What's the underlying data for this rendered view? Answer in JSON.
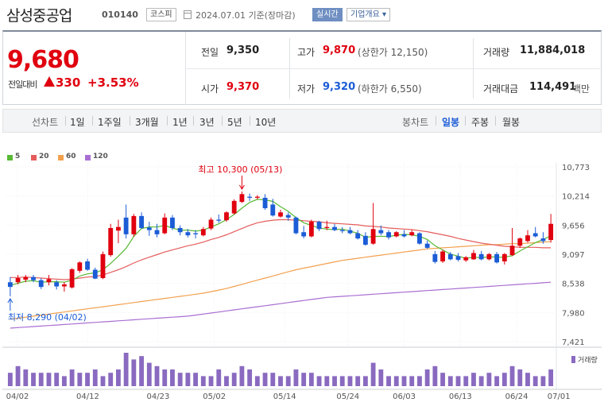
{
  "header": {
    "company": "삼성중공업",
    "code": "010140",
    "market_badge": "코스피",
    "date_text": "2024.07.01 기준(장마감)",
    "realtime_label": "실시간",
    "corp_info_label": "기업개요 ▾"
  },
  "quote": {
    "price": "9,680",
    "prev_label": "전일대비",
    "change": "330",
    "change_pct": "+3.53%"
  },
  "stats": {
    "prev_close": {
      "label": "전일",
      "value": "9,350"
    },
    "open": {
      "label": "시가",
      "value": "9,370"
    },
    "high": {
      "label": "고가",
      "value": "9,870",
      "limit": "(상한가 12,150)"
    },
    "low": {
      "label": "저가",
      "value": "9,320",
      "limit": "(하한가 6,550)"
    },
    "volume": {
      "label": "거래량",
      "value": "11,884,018"
    },
    "amount": {
      "label": "거래대금",
      "value": "114,491",
      "unit": "백만"
    }
  },
  "period_bar": {
    "line_label": "선차트",
    "line_periods": [
      "1일",
      "1주일",
      "3개월",
      "1년",
      "3년",
      "5년",
      "10년"
    ],
    "candle_label": "봉차트",
    "candle_periods": [
      "일봉",
      "주봉",
      "월봉"
    ],
    "active_candle": "일봉"
  },
  "colors": {
    "up": "#e0000f",
    "down": "#1b5cd6",
    "ma5": "#58b935",
    "ma20": "#e55c5c",
    "ma60": "#f2a04e",
    "ma120": "#a96ed2",
    "volume": "#8a6ac0"
  },
  "chart_data": {
    "type": "candlestick",
    "legend": [
      {
        "name": "5",
        "color": "#58b935"
      },
      {
        "name": "20",
        "color": "#e55c5c"
      },
      {
        "name": "60",
        "color": "#f2a04e"
      },
      {
        "name": "120",
        "color": "#a96ed2"
      }
    ],
    "y_ticks": [
      "10,773",
      "10,214",
      "9,656",
      "9,097",
      "8,538",
      "7,980",
      "7,421"
    ],
    "ylim": [
      7421,
      10773
    ],
    "x_ticks": [
      "04/02",
      "04/12",
      "04/23",
      "05/02",
      "05/14",
      "05/24",
      "06/03",
      "06/13",
      "06/24",
      "07/01"
    ],
    "annotations": {
      "high": "최고 10,300 (05/13)",
      "low": "최저 8,290 (04/02)"
    },
    "volume_label": "거래량",
    "candles": [
      {
        "o": 8560,
        "h": 8660,
        "l": 8290,
        "c": 8470
      },
      {
        "o": 8560,
        "h": 8700,
        "l": 8520,
        "c": 8640
      },
      {
        "o": 8610,
        "h": 8700,
        "l": 8560,
        "c": 8660
      },
      {
        "o": 8660,
        "h": 8700,
        "l": 8560,
        "c": 8600
      },
      {
        "o": 8600,
        "h": 8640,
        "l": 8430,
        "c": 8470
      },
      {
        "o": 8560,
        "h": 8700,
        "l": 8500,
        "c": 8620
      },
      {
        "o": 8560,
        "h": 8600,
        "l": 8420,
        "c": 8480
      },
      {
        "o": 8480,
        "h": 8560,
        "l": 8380,
        "c": 8520
      },
      {
        "o": 8460,
        "h": 8830,
        "l": 8440,
        "c": 8810
      },
      {
        "o": 8780,
        "h": 8960,
        "l": 8740,
        "c": 8940
      },
      {
        "o": 8960,
        "h": 9010,
        "l": 8780,
        "c": 8800
      },
      {
        "o": 8800,
        "h": 8840,
        "l": 8620,
        "c": 8630
      },
      {
        "o": 8640,
        "h": 9150,
        "l": 8620,
        "c": 9100
      },
      {
        "o": 9080,
        "h": 9680,
        "l": 9050,
        "c": 9600
      },
      {
        "o": 9550,
        "h": 9760,
        "l": 9310,
        "c": 9620
      },
      {
        "o": 9800,
        "h": 10050,
        "l": 9400,
        "c": 9480
      },
      {
        "o": 9480,
        "h": 9870,
        "l": 9430,
        "c": 9830
      },
      {
        "o": 9830,
        "h": 9900,
        "l": 9580,
        "c": 9600
      },
      {
        "o": 9610,
        "h": 9720,
        "l": 9450,
        "c": 9560
      },
      {
        "o": 9560,
        "h": 9680,
        "l": 9420,
        "c": 9480
      },
      {
        "o": 9500,
        "h": 9880,
        "l": 9480,
        "c": 9800
      },
      {
        "o": 9800,
        "h": 9850,
        "l": 9560,
        "c": 9600
      },
      {
        "o": 9600,
        "h": 9650,
        "l": 9460,
        "c": 9520
      },
      {
        "o": 9520,
        "h": 9580,
        "l": 9420,
        "c": 9460
      },
      {
        "o": 9500,
        "h": 9560,
        "l": 9400,
        "c": 9480
      },
      {
        "o": 9460,
        "h": 9620,
        "l": 9440,
        "c": 9580
      },
      {
        "o": 9590,
        "h": 9800,
        "l": 9560,
        "c": 9760
      },
      {
        "o": 9760,
        "h": 9860,
        "l": 9700,
        "c": 9740
      },
      {
        "o": 9750,
        "h": 9920,
        "l": 9720,
        "c": 9900
      },
      {
        "o": 9880,
        "h": 10150,
        "l": 9860,
        "c": 10120
      },
      {
        "o": 10100,
        "h": 10300,
        "l": 10080,
        "c": 10250
      },
      {
        "o": 10200,
        "h": 10260,
        "l": 10120,
        "c": 10180
      },
      {
        "o": 10180,
        "h": 10230,
        "l": 10150,
        "c": 10200
      },
      {
        "o": 10180,
        "h": 10250,
        "l": 9950,
        "c": 9980
      },
      {
        "o": 10050,
        "h": 10160,
        "l": 9820,
        "c": 9840
      },
      {
        "o": 9820,
        "h": 9950,
        "l": 9800,
        "c": 9900
      },
      {
        "o": 9850,
        "h": 9900,
        "l": 9740,
        "c": 9800
      },
      {
        "o": 9800,
        "h": 9820,
        "l": 9480,
        "c": 9500
      },
      {
        "o": 9520,
        "h": 9640,
        "l": 9400,
        "c": 9440
      },
      {
        "o": 9440,
        "h": 9760,
        "l": 9420,
        "c": 9720
      },
      {
        "o": 9720,
        "h": 9740,
        "l": 9540,
        "c": 9580
      },
      {
        "o": 9600,
        "h": 9740,
        "l": 9560,
        "c": 9620
      },
      {
        "o": 9620,
        "h": 9680,
        "l": 9540,
        "c": 9560
      },
      {
        "o": 9560,
        "h": 9620,
        "l": 9500,
        "c": 9540
      },
      {
        "o": 9560,
        "h": 9620,
        "l": 9480,
        "c": 9500
      },
      {
        "o": 9500,
        "h": 9560,
        "l": 9380,
        "c": 9400
      },
      {
        "o": 9450,
        "h": 9520,
        "l": 9260,
        "c": 9280
      },
      {
        "o": 9300,
        "h": 10080,
        "l": 9280,
        "c": 9580
      },
      {
        "o": 9560,
        "h": 9650,
        "l": 9460,
        "c": 9500
      },
      {
        "o": 9520,
        "h": 9560,
        "l": 9380,
        "c": 9420
      },
      {
        "o": 9440,
        "h": 9540,
        "l": 9420,
        "c": 9520
      },
      {
        "o": 9480,
        "h": 9560,
        "l": 9420,
        "c": 9440
      },
      {
        "o": 9460,
        "h": 9560,
        "l": 9440,
        "c": 9520
      },
      {
        "o": 9500,
        "h": 9520,
        "l": 9280,
        "c": 9300
      },
      {
        "o": 9300,
        "h": 9360,
        "l": 9200,
        "c": 9220
      },
      {
        "o": 9100,
        "h": 9160,
        "l": 8920,
        "c": 8950
      },
      {
        "o": 8960,
        "h": 9180,
        "l": 8930,
        "c": 9150
      },
      {
        "o": 9100,
        "h": 9140,
        "l": 8980,
        "c": 9000
      },
      {
        "o": 9060,
        "h": 9120,
        "l": 8960,
        "c": 8990
      },
      {
        "o": 8980,
        "h": 9060,
        "l": 8950,
        "c": 9040
      },
      {
        "o": 9000,
        "h": 9180,
        "l": 8990,
        "c": 9120
      },
      {
        "o": 9100,
        "h": 9160,
        "l": 8980,
        "c": 9000
      },
      {
        "o": 9000,
        "h": 9120,
        "l": 8980,
        "c": 9100
      },
      {
        "o": 9100,
        "h": 9140,
        "l": 8920,
        "c": 8940
      },
      {
        "o": 8960,
        "h": 9120,
        "l": 8900,
        "c": 9100
      },
      {
        "o": 9080,
        "h": 9600,
        "l": 9060,
        "c": 9260
      },
      {
        "o": 9260,
        "h": 9420,
        "l": 9220,
        "c": 9400
      },
      {
        "o": 9350,
        "h": 9560,
        "l": 9320,
        "c": 9460
      },
      {
        "o": 9500,
        "h": 9620,
        "l": 9420,
        "c": 9440
      },
      {
        "o": 9400,
        "h": 9520,
        "l": 9300,
        "c": 9350
      },
      {
        "o": 9370,
        "h": 9870,
        "l": 9320,
        "c": 9680
      }
    ],
    "ma5": [
      8500,
      8540,
      8580,
      8590,
      8560,
      8570,
      8570,
      8560,
      8600,
      8680,
      8720,
      8740,
      8800,
      8920,
      9060,
      9210,
      9440,
      9590,
      9620,
      9620,
      9650,
      9600,
      9560,
      9560,
      9540,
      9560,
      9620,
      9680,
      9760,
      9860,
      9980,
      10090,
      10150,
      10140,
      10110,
      10010,
      9920,
      9800,
      9700,
      9650,
      9600,
      9580,
      9570,
      9580,
      9540,
      9500,
      9420,
      9440,
      9440,
      9440,
      9460,
      9480,
      9470,
      9440,
      9380,
      9260,
      9180,
      9100,
      9060,
      9020,
      9040,
      9030,
      9050,
      9040,
      9040,
      9070,
      9160,
      9240,
      9320,
      9380,
      9450
    ],
    "ma20": [
      8650,
      8650,
      8660,
      8650,
      8640,
      8630,
      8620,
      8610,
      8620,
      8640,
      8660,
      8670,
      8700,
      8750,
      8800,
      8860,
      8930,
      8990,
      9040,
      9090,
      9140,
      9180,
      9220,
      9260,
      9290,
      9330,
      9380,
      9420,
      9470,
      9530,
      9590,
      9650,
      9700,
      9730,
      9750,
      9760,
      9760,
      9750,
      9740,
      9730,
      9720,
      9700,
      9690,
      9680,
      9670,
      9660,
      9640,
      9630,
      9620,
      9600,
      9590,
      9580,
      9570,
      9550,
      9530,
      9500,
      9470,
      9440,
      9400,
      9370,
      9340,
      9310,
      9290,
      9270,
      9250,
      9240,
      9230,
      9230,
      9230,
      9220,
      9220
    ],
    "ma60": [
      7850,
      7870,
      7890,
      7910,
      7930,
      7950,
      7970,
      7990,
      8010,
      8030,
      8050,
      8070,
      8090,
      8110,
      8130,
      8150,
      8170,
      8190,
      8210,
      8230,
      8250,
      8270,
      8290,
      8310,
      8330,
      8350,
      8380,
      8410,
      8440,
      8480,
      8520,
      8560,
      8600,
      8640,
      8680,
      8720,
      8760,
      8800,
      8830,
      8860,
      8890,
      8920,
      8950,
      8980,
      9000,
      9020,
      9040,
      9060,
      9080,
      9100,
      9120,
      9140,
      9160,
      9180,
      9200,
      9210,
      9220,
      9230,
      9240,
      9250,
      9260,
      9270,
      9280,
      9280,
      9290,
      9300,
      9300,
      9310,
      9320,
      9330,
      9340
    ],
    "ma120": [
      7680,
      7690,
      7700,
      7710,
      7720,
      7730,
      7740,
      7750,
      7760,
      7770,
      7780,
      7790,
      7800,
      7810,
      7820,
      7830,
      7840,
      7850,
      7860,
      7870,
      7880,
      7890,
      7900,
      7910,
      7930,
      7950,
      7970,
      7990,
      8010,
      8030,
      8050,
      8070,
      8090,
      8110,
      8130,
      8150,
      8170,
      8190,
      8210,
      8230,
      8250,
      8270,
      8280,
      8290,
      8300,
      8310,
      8320,
      8330,
      8340,
      8350,
      8360,
      8370,
      8380,
      8390,
      8400,
      8410,
      8420,
      8430,
      8440,
      8450,
      8460,
      8470,
      8480,
      8490,
      8500,
      8510,
      8520,
      8530,
      8540,
      8550,
      8560
    ],
    "volume": [
      4,
      6,
      5,
      4,
      4,
      4,
      4,
      3,
      5,
      4,
      4,
      5,
      3,
      4,
      5,
      10,
      8,
      9,
      7,
      6,
      5,
      5,
      4,
      4,
      4,
      3,
      3,
      5,
      3,
      4,
      6,
      5,
      3,
      4,
      4,
      3,
      3,
      5,
      4,
      4,
      3,
      3,
      3,
      3,
      3,
      3,
      3,
      7,
      5,
      3,
      3,
      3,
      3,
      3,
      5,
      6,
      4,
      3,
      3,
      3,
      4,
      3,
      4,
      3,
      4,
      6,
      5,
      4,
      3,
      3,
      5
    ]
  }
}
